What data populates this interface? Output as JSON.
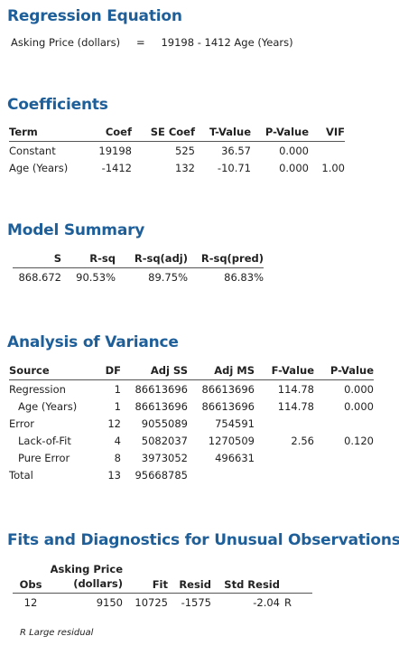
{
  "regression_equation": {
    "title": "Regression Equation",
    "response": "Asking Price (dollars)",
    "equals": "=",
    "expression": "19198 - 1412 Age (Years)"
  },
  "coefficients": {
    "title": "Coefficients",
    "headers": [
      "Term",
      "Coef",
      "SE Coef",
      "T-Value",
      "P-Value",
      "VIF"
    ],
    "rows": [
      {
        "term": "Constant",
        "coef": "19198",
        "se_coef": "525",
        "t_value": "36.57",
        "p_value": "0.000",
        "vif": ""
      },
      {
        "term": "Age (Years)",
        "coef": "-1412",
        "se_coef": "132",
        "t_value": "-10.71",
        "p_value": "0.000",
        "vif": "1.00"
      }
    ]
  },
  "model_summary": {
    "title": "Model Summary",
    "headers": [
      "S",
      "R-sq",
      "R-sq(adj)",
      "R-sq(pred)"
    ],
    "row": {
      "s": "868.672",
      "r_sq": "90.53%",
      "r_sq_adj": "89.75%",
      "r_sq_pred": "86.83%"
    }
  },
  "anova": {
    "title": "Analysis of Variance",
    "headers": [
      "Source",
      "DF",
      "Adj SS",
      "Adj MS",
      "F-Value",
      "P-Value"
    ],
    "rows": [
      {
        "source": "Regression",
        "df": "1",
        "adj_ss": "86613696",
        "adj_ms": "86613696",
        "f_value": "114.78",
        "p_value": "0.000",
        "indent": false
      },
      {
        "source": "Age (Years)",
        "df": "1",
        "adj_ss": "86613696",
        "adj_ms": "86613696",
        "f_value": "114.78",
        "p_value": "0.000",
        "indent": true
      },
      {
        "source": "Error",
        "df": "12",
        "adj_ss": "9055089",
        "adj_ms": "754591",
        "f_value": "",
        "p_value": "",
        "indent": false
      },
      {
        "source": "Lack-of-Fit",
        "df": "4",
        "adj_ss": "5082037",
        "adj_ms": "1270509",
        "f_value": "2.56",
        "p_value": "0.120",
        "indent": true
      },
      {
        "source": "Pure Error",
        "df": "8",
        "adj_ss": "3973052",
        "adj_ms": "496631",
        "f_value": "",
        "p_value": "",
        "indent": true
      },
      {
        "source": "Total",
        "df": "13",
        "adj_ss": "95668785",
        "adj_ms": "",
        "f_value": "",
        "p_value": "",
        "indent": false
      }
    ]
  },
  "unusual_observations": {
    "title": "Fits and Diagnostics for Unusual Observations",
    "headers": {
      "obs": "Obs",
      "asking_price_line1": "Asking Price",
      "asking_price_line2": "(dollars)",
      "fit": "Fit",
      "resid": "Resid",
      "std_resid": "Std Resid"
    },
    "rows": [
      {
        "obs": "12",
        "asking_price": "9150",
        "fit": "10725",
        "resid": "-1575",
        "std_resid": "-2.04",
        "flag": "R"
      }
    ],
    "footnote": "R  Large residual"
  },
  "colors": {
    "section_title": "#1f5f99",
    "text": "#222222",
    "rule": "#555555"
  }
}
